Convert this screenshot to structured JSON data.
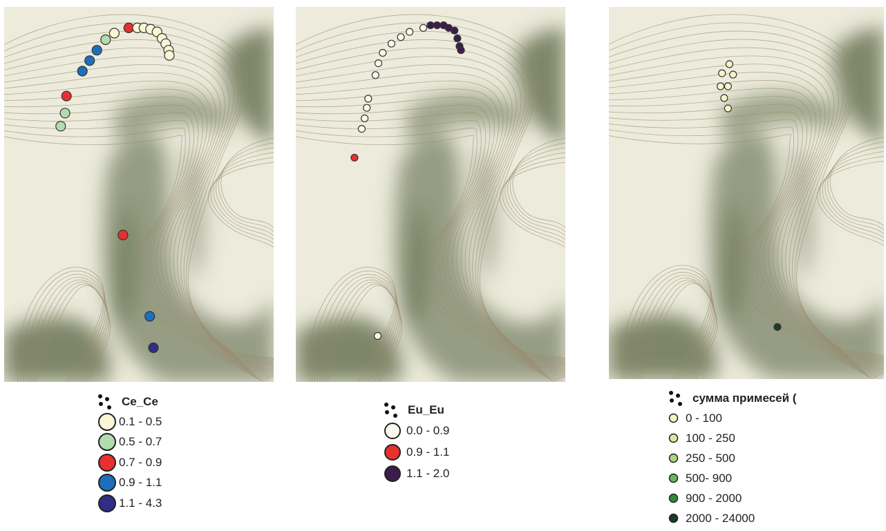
{
  "colors": {
    "contour": "#9b8a6e",
    "contour_label": "#7a6a52",
    "terrain_light": "#ecebdc",
    "terrain_dark": "#4e5c38",
    "marker_stroke": "#333333"
  },
  "maps": [
    {
      "id": "ce",
      "legend_title": "Ce_Ce",
      "classes": [
        {
          "label": "0.1 - 0.5",
          "color": "#fbf6d6"
        },
        {
          "label": "0.5 - 0.7",
          "color": "#b3dbb0"
        },
        {
          "label": "0.7 - 0.9",
          "color": "#e8302f"
        },
        {
          "label": "0.9 - 1.1",
          "color": "#1c6fbc"
        },
        {
          "label": "1.1 - 4.3",
          "color": "#302e86"
        }
      ],
      "points": [
        {
          "lon": 128,
          "lat": 86,
          "cls": 4
        },
        {
          "lon": 123,
          "lat": 110,
          "cls": 3
        },
        {
          "lon": 86,
          "lat": 172,
          "cls": 2
        },
        {
          "lon": 0,
          "lat": 255,
          "cls": 1
        },
        {
          "lon": 6,
          "lat": 265,
          "cls": 1
        },
        {
          "lon": 8,
          "lat": 278,
          "cls": 2
        },
        {
          "lon": 30,
          "lat": 297,
          "cls": 3
        },
        {
          "lon": 40,
          "lat": 305,
          "cls": 3
        },
        {
          "lon": 50,
          "lat": 313,
          "cls": 3
        },
        {
          "lon": 62,
          "lat": 321,
          "cls": 1
        },
        {
          "lon": 74,
          "lat": 326,
          "cls": 0
        },
        {
          "lon": 94,
          "lat": 330,
          "cls": 2
        },
        {
          "lon": 106,
          "lat": 330,
          "cls": 0
        },
        {
          "lon": 115,
          "lat": 330,
          "cls": 0
        },
        {
          "lon": 124,
          "lat": 329,
          "cls": 0
        },
        {
          "lon": 133,
          "lat": 327,
          "cls": 0
        },
        {
          "lon": 140,
          "lat": 322,
          "cls": 0
        },
        {
          "lon": 145,
          "lat": 318,
          "cls": 0
        },
        {
          "lon": 149,
          "lat": 313,
          "cls": 0
        },
        {
          "lon": 150,
          "lat": 309,
          "cls": 0
        }
      ]
    },
    {
      "id": "eu",
      "legend_title": "Eu_Eu",
      "classes": [
        {
          "label": "0.0 - 0.9",
          "color": "#fbf8ec"
        },
        {
          "label": "0.9 - 1.1",
          "color": "#e8302f"
        },
        {
          "label": "1.1 - 2.0",
          "color": "#3b1d4c"
        }
      ],
      "points": [
        {
          "lon": 230,
          "lat": 95,
          "cls": 0
        },
        {
          "lon": 198,
          "lat": 231,
          "cls": 1
        },
        {
          "lon": 208,
          "lat": 253,
          "cls": 0
        },
        {
          "lon": 212,
          "lat": 261,
          "cls": 0
        },
        {
          "lon": 215,
          "lat": 269,
          "cls": 0
        },
        {
          "lon": 217,
          "lat": 276,
          "cls": 0
        },
        {
          "lon": 227,
          "lat": 294,
          "cls": 0
        },
        {
          "lon": 231,
          "lat": 303,
          "cls": 0
        },
        {
          "lon": 237,
          "lat": 311,
          "cls": 0
        },
        {
          "lon": 249,
          "lat": 318,
          "cls": 0
        },
        {
          "lon": 262,
          "lat": 323,
          "cls": 0
        },
        {
          "lon": 274,
          "lat": 327,
          "cls": 0
        },
        {
          "lon": 293,
          "lat": 330,
          "cls": 0
        },
        {
          "lon": 303,
          "lat": 332,
          "cls": 2
        },
        {
          "lon": 312,
          "lat": 332,
          "cls": 2
        },
        {
          "lon": 321,
          "lat": 332,
          "cls": 2
        },
        {
          "lon": 328,
          "lat": 330,
          "cls": 2
        },
        {
          "lon": 336,
          "lat": 328,
          "cls": 2
        },
        {
          "lon": 340,
          "lat": 322,
          "cls": 2
        },
        {
          "lon": 343,
          "lat": 316,
          "cls": 2
        },
        {
          "lon": 345,
          "lat": 313,
          "cls": 2
        }
      ]
    },
    {
      "id": "sum",
      "legend_title": "сумма примесей (",
      "classes": [
        {
          "label": "0 - 100",
          "color": "#f6f3c8"
        },
        {
          "label": "100 - 250",
          "color": "#d8e99f"
        },
        {
          "label": "250 - 500",
          "color": "#a8d77f"
        },
        {
          "label": "500- 900",
          "color": "#64b85c"
        },
        {
          "label": "900 - 2000",
          "color": "#2e8b3f"
        },
        {
          "label": "2000 - 24000",
          "color": "#173f26"
        }
      ],
      "points": [
        {
          "lon": 760,
          "lat": 100,
          "cls": 5
        },
        {
          "lon": 688,
          "lat": 276,
          "cls": 0
        },
        {
          "lon": 693,
          "lat": 285,
          "cls": 0
        },
        {
          "lon": 700,
          "lat": 294,
          "cls": 0
        },
        {
          "lon": 683,
          "lat": 285,
          "cls": 0
        },
        {
          "lon": 693,
          "lat": 268,
          "cls": 0
        },
        {
          "lon": 695,
          "lat": 302,
          "cls": 0
        },
        {
          "lon": 685,
          "lat": 295,
          "cls": 0
        },
        {
          "lon": 710,
          "lat": 400,
          "cls": 2
        },
        {
          "lon": 714,
          "lat": 408,
          "cls": 1
        },
        {
          "lon": 717,
          "lat": 417,
          "cls": 1
        },
        {
          "lon": 721,
          "lat": 426,
          "cls": 4
        },
        {
          "lon": 730,
          "lat": 445,
          "cls": 3
        },
        {
          "lon": 741,
          "lat": 455,
          "cls": 1
        },
        {
          "lon": 755,
          "lat": 464,
          "cls": 1
        },
        {
          "lon": 777,
          "lat": 473,
          "cls": 0
        },
        {
          "lon": 791,
          "lat": 478,
          "cls": 3
        },
        {
          "lon": 811,
          "lat": 481,
          "cls": 1
        },
        {
          "lon": 824,
          "lat": 482,
          "cls": 1
        },
        {
          "lon": 837,
          "lat": 484,
          "cls": 1
        },
        {
          "lon": 851,
          "lat": 485,
          "cls": 1
        },
        {
          "lon": 865,
          "lat": 486,
          "cls": 5
        },
        {
          "lon": 877,
          "lat": 482,
          "cls": 4
        },
        {
          "lon": 886,
          "lat": 480,
          "cls": 4
        },
        {
          "lon": 889,
          "lat": 473,
          "cls": 3
        },
        {
          "lon": 893,
          "lat": 466,
          "cls": 3
        }
      ]
    }
  ]
}
